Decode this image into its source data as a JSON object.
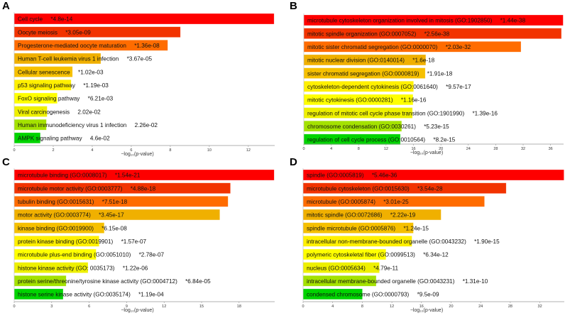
{
  "xlabel": "−log₁₀(p-value)",
  "colors": [
    "#fe0000",
    "#f23300",
    "#ff6c00",
    "#f0b000",
    "#f6c000",
    "#fff000",
    "#ffff00",
    "#eef000",
    "#a4e200",
    "#00d400"
  ],
  "chart_data": [
    {
      "type": "bar",
      "panel": "A",
      "xlabel": "−log₁₀(p-value)",
      "xlim": [
        0,
        13.35
      ],
      "ticks": [
        0,
        2,
        4,
        6,
        8,
        10,
        12
      ],
      "categories": [
        "Cell cycle",
        "Oocyte meiosis",
        "Progesterone-mediated oocyte maturation",
        "Human T-cell leukemia virus 1 infection",
        "Cellular senescence",
        "p53 signaling pathway",
        "FoxO signaling pathway",
        "Viral carcinogenesis",
        "Human immunodeficiency virus 1 infection",
        "AMPK signaling pathway"
      ],
      "pvalue_labels": [
        "*4.8e-14",
        "*3.05e-09",
        "*1.36e-08",
        "*3.67e-05",
        "*1.02e-03",
        "*1.19e-03",
        "*6.21e-03",
        "2.02e-02",
        "2.26e-02",
        "4.6e-02"
      ],
      "values": [
        13.32,
        8.52,
        7.87,
        4.44,
        2.99,
        2.92,
        2.21,
        1.69,
        1.65,
        1.34
      ]
    },
    {
      "type": "bar",
      "panel": "B",
      "xlabel": "−log₁₀(p-value)",
      "xlim": [
        0,
        37.9
      ],
      "ticks": [
        0,
        4,
        8,
        12,
        16,
        20,
        24,
        28,
        32,
        36
      ],
      "categories": [
        "microtubule cytoskeleton organization involved in mitosis (GO:1902850)",
        "mitotic spindle organization (GO:0007052)",
        "mitotic sister chromatid segregation (GO:0000070)",
        "mitotic nuclear division (GO:0140014)",
        "sister chromatid segregation (GO:0000819)",
        "cytoskeleton-dependent cytokinesis (GO:0061640)",
        "mitotic cytokinesis (GO:0000281)",
        "regulation of mitotic cell cycle phase transition (GO:1901990)",
        "chromosome condensation (GO:0030261)",
        "regulation of cell cycle process (GO:0010564)"
      ],
      "pvalue_labels": [
        "*1.44e-38",
        "*2.56e-38",
        "*2.03e-32",
        "*1.6e-18",
        "*1.91e-18",
        "*9.57e-17",
        "*1.16e-16",
        "*1.39e-16",
        "*5.23e-15",
        "*8.2e-15"
      ],
      "values": [
        37.84,
        37.59,
        31.69,
        17.8,
        17.72,
        16.02,
        15.94,
        15.86,
        14.28,
        14.09
      ]
    },
    {
      "type": "bar",
      "panel": "C",
      "xlabel": "−log₁₀(p-value)",
      "xlim": [
        0,
        20.85
      ],
      "ticks": [
        0,
        3,
        6,
        9,
        12,
        15,
        18
      ],
      "categories": [
        "microtubule binding (GO:0008017)",
        "microtubule motor activity (GO:0003777)",
        "tubulin binding (GO:0015631)",
        "motor activity (GO:0003774)",
        "kinase binding (GO:0019900)",
        "protein kinase binding (GO:0019901)",
        "microtubule plus-end binding (GO:0051010)",
        "histone kinase activity (GO: 0035173)",
        "protein serine/threonine/tyrosine kinase activity (GO:0004712)",
        "histone serine kinase activity (GO:0035174)"
      ],
      "pvalue_labels": [
        "*1.54e-21",
        "*4.88e-18",
        "*7.51e-18",
        "*3.45e-17",
        "*6.15e-08",
        "*1.57e-07",
        "*2.78e-07",
        "*1.22e-06",
        "*6.84e-05",
        "*1.19e-04"
      ],
      "values": [
        20.81,
        17.31,
        17.12,
        16.46,
        7.21,
        6.8,
        6.56,
        5.91,
        4.16,
        3.92
      ]
    },
    {
      "type": "bar",
      "panel": "D",
      "xlabel": "−log₁₀(p-value)",
      "xlim": [
        0,
        35.3
      ],
      "ticks": [
        0,
        4,
        8,
        12,
        16,
        20,
        24,
        28,
        32
      ],
      "categories": [
        "spindle (GO:0005819)",
        "microtubule cytoskeleton (GO:0015630)",
        "microtubule (GO:0005874)",
        "mitotic spindle (GO:0072686)",
        "spindle microtubule (GO:0005876)",
        "intracellular non-membrane-bounded organelle (GO:0043232)",
        "polymeric cytoskeletal fiber (GO:0099513)",
        "nucleus (GO:0005634)",
        "intracellular membrane-bounded organelle (GO:0043231)",
        "condensed chromosome (GO:0000793)"
      ],
      "pvalue_labels": [
        "*5.46e-36",
        "*3.54e-28",
        "*3.01e-25",
        "*2.22e-19",
        "*1.24e-15",
        "*1.90e-15",
        "*6.34e-12",
        "*4.79e-11",
        "*1.31e-10",
        "*9.5e-09"
      ],
      "values": [
        35.26,
        27.45,
        24.52,
        18.65,
        14.91,
        14.72,
        11.2,
        10.32,
        9.88,
        8.02
      ]
    }
  ]
}
